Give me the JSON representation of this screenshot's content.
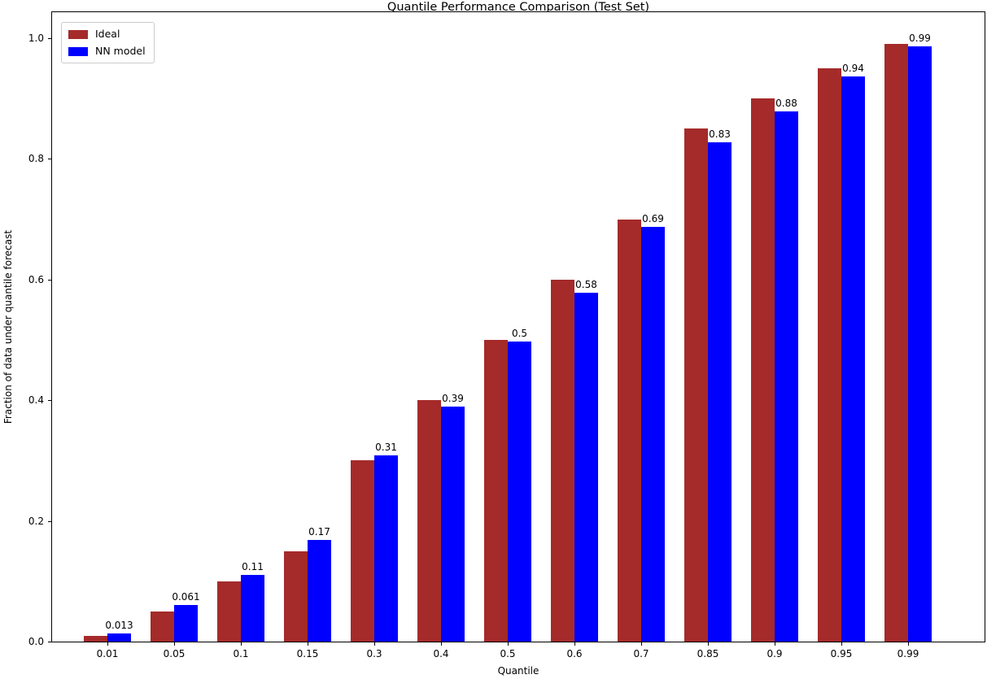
{
  "title": "Quantile Performance Comparison (Test Set)",
  "legend": {
    "position": "upper left",
    "items": [
      {
        "label": "Ideal",
        "color": "#A52A2A"
      },
      {
        "label": "NN model",
        "color": "#0000FF"
      }
    ]
  },
  "chart_data": {
    "type": "bar",
    "title": "Quantile Performance Comparison (Test Set)",
    "xlabel": "Quantile",
    "ylabel": "Fraction of data under quantile forecast",
    "categories": [
      "0.01",
      "0.05",
      "0.1",
      "0.15",
      "0.3",
      "0.4",
      "0.5",
      "0.6",
      "0.7",
      "0.85",
      "0.9",
      "0.95",
      "0.99"
    ],
    "series": [
      {
        "name": "Ideal",
        "color": "#A52A2A",
        "values": [
          0.01,
          0.05,
          0.1,
          0.15,
          0.3,
          0.4,
          0.5,
          0.6,
          0.7,
          0.85,
          0.9,
          0.95,
          0.99
        ]
      },
      {
        "name": "NN model",
        "color": "#0000FF",
        "values": [
          0.013,
          0.061,
          0.11,
          0.168,
          0.308,
          0.39,
          0.497,
          0.578,
          0.688,
          0.827,
          0.879,
          0.937,
          0.986
        ],
        "bar_labels": [
          "0.013",
          "0.061",
          "0.11",
          "0.17",
          "0.31",
          "0.39",
          "0.5",
          "0.58",
          "0.69",
          "0.83",
          "0.88",
          "0.94",
          "0.99"
        ]
      }
    ],
    "yticks": [
      "0.0",
      "0.2",
      "0.4",
      "0.6",
      "0.8",
      "1.0"
    ],
    "ylim": [
      0.0,
      1.043
    ],
    "grid": false,
    "legend_position": "upper left"
  }
}
